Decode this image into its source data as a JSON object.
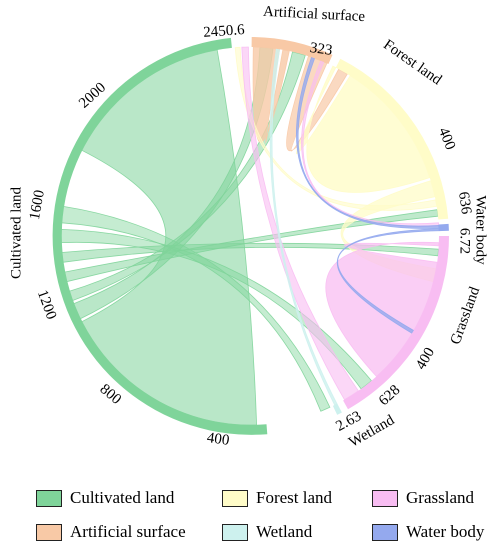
{
  "colors": {
    "cultivated": "#7fd49a",
    "artificial": "#f8c9a6",
    "forest": "#fffcc8",
    "grassland": "#f8bdf2",
    "wetland": "#cdf1ee",
    "water": "#94a9ee"
  },
  "groups": [
    {
      "key": "cultivated",
      "label": "Cultivated land",
      "total": "2450.6",
      "ticks": [
        "400",
        "800",
        "1200",
        "1600",
        "2000"
      ]
    },
    {
      "key": "artificial",
      "label": "Artificial surface",
      "total": "323",
      "ticks": []
    },
    {
      "key": "forest",
      "label": "Forest land",
      "total": "636",
      "ticks": [
        "400"
      ]
    },
    {
      "key": "water",
      "label": "Water body",
      "total": "6.72",
      "ticks": []
    },
    {
      "key": "grassland",
      "label": "Grassland",
      "total": "628",
      "ticks": [
        "400"
      ]
    },
    {
      "key": "wetland",
      "label": "Wetland",
      "total": "2.63",
      "ticks": []
    }
  ],
  "legend": [
    {
      "key": "cultivated",
      "label": "Cultivated land",
      "icon": "swatch-green"
    },
    {
      "key": "forest",
      "label": "Forest land",
      "icon": "swatch-yellow"
    },
    {
      "key": "grassland",
      "label": "Grassland",
      "icon": "swatch-pink"
    },
    {
      "key": "artificial",
      "label": "Artificial surface",
      "icon": "swatch-orange"
    },
    {
      "key": "wetland",
      "label": "Wetland",
      "icon": "swatch-cyan"
    },
    {
      "key": "water",
      "label": "Water body",
      "icon": "swatch-blue"
    }
  ]
}
